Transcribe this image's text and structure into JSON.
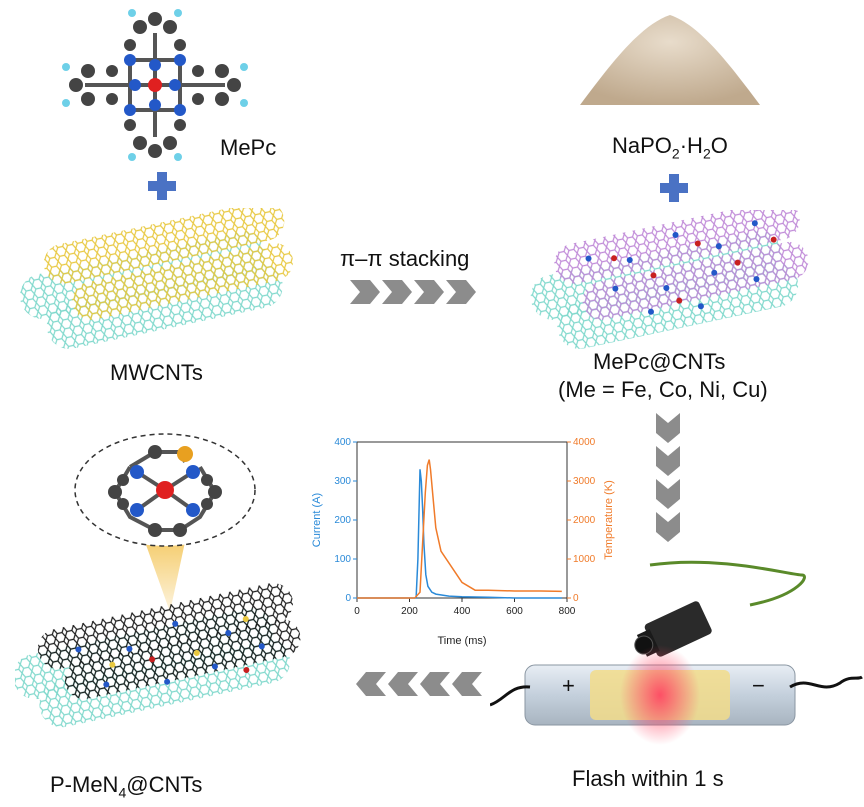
{
  "labels": {
    "mepc": "MePc",
    "naph_prefix": "NaPO",
    "naph_sub1": "2",
    "naph_mid": "·H",
    "naph_sub2": "2",
    "naph_suffix": "O",
    "stacking": "π–π stacking",
    "mwcnts": "MWCNTs",
    "mepc_cnts": "MePc@CNTs",
    "metals": "(Me = Fe, Co, Ni, Cu)",
    "product_prefix": "P-MeN",
    "product_sub": "4",
    "product_suffix": "@CNTs",
    "flash": "Flash within 1 s",
    "plus_sign": "+",
    "minus_sign": "−"
  },
  "colors": {
    "plus": "#4a72c4",
    "arrow": "#8c8c8c",
    "current": "#2a8ad8",
    "temperature": "#f07b2a",
    "cnt_cyan": "#7fd8cc",
    "cnt_yellow": "#e8c840",
    "cnt_purple": "#c08ad8",
    "cnt_black": "#1a1a1a"
  },
  "chart_data": {
    "type": "line",
    "xlabel": "Time (ms)",
    "ylabel_left": "Current (A)",
    "ylabel_right": "Temperature (K)",
    "xlim": [
      0,
      800
    ],
    "ylim_left": [
      0,
      400
    ],
    "ylim_right": [
      0,
      4000
    ],
    "xticks": [
      0,
      200,
      400,
      600,
      800
    ],
    "yticks_left": [
      0,
      100,
      200,
      300,
      400
    ],
    "yticks_right": [
      0,
      1000,
      2000,
      3000,
      4000
    ],
    "series": [
      {
        "axis": "left",
        "x": [
          0,
          200,
          225,
          232,
          240,
          245,
          250,
          255,
          262,
          270,
          285,
          300,
          350,
          400,
          500,
          600,
          700,
          780
        ],
        "values": [
          0,
          0,
          0,
          100,
          330,
          300,
          230,
          140,
          60,
          30,
          15,
          10,
          5,
          3,
          2,
          0,
          0,
          0
        ]
      },
      {
        "axis": "right",
        "x": [
          0,
          220,
          240,
          250,
          260,
          268,
          275,
          280,
          288,
          300,
          320,
          350,
          400,
          450,
          500,
          600,
          700,
          780
        ],
        "values": [
          0,
          0,
          150,
          1400,
          2700,
          3400,
          3550,
          3300,
          2700,
          1800,
          1200,
          900,
          400,
          200,
          200,
          180,
          180,
          170
        ]
      }
    ]
  }
}
